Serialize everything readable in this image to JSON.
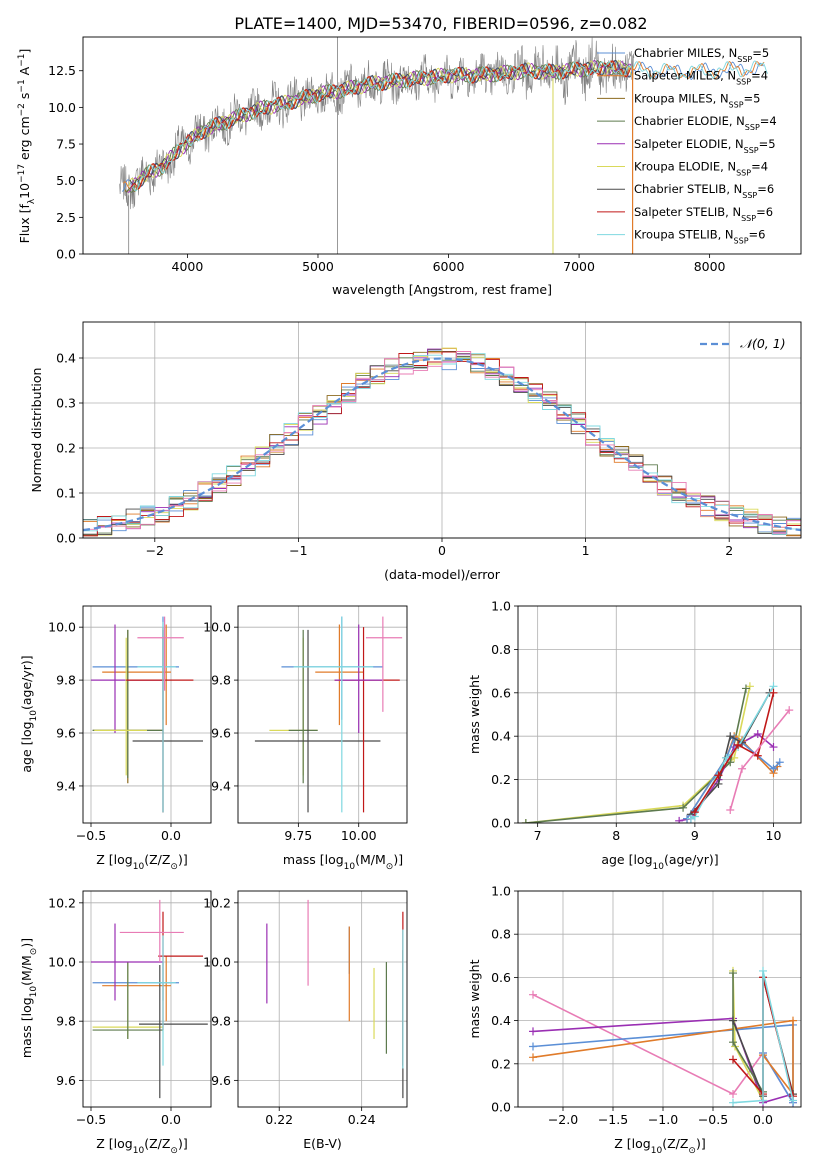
{
  "title": "PLATE=1400, MJD=53470, FIBERID=0596, z=0.082",
  "colors": {
    "chabrier_miles": "#5b8fd6",
    "salpeter_miles": "#e07b2a",
    "kroupa_miles": "#8c6a1e",
    "chabrier_elodie": "#5d7a4e",
    "salpeter_elodie": "#9a2fb3",
    "kroupa_elodie": "#d9d95a",
    "chabrier_stelib": "#4a4a4a",
    "salpeter_stelib": "#c01818",
    "kroupa_stelib": "#7fd8e0",
    "data": "#808080",
    "pink": "#e87cb5",
    "grid": "#b0b0b0"
  },
  "chart_data": [
    {
      "id": "spectrum",
      "type": "line",
      "xlabel": "wavelength [Angstrom, rest frame]",
      "ylabel": "Flux [f",
      "ylabel_sub": "λ",
      "ylabel_rest": "10",
      "ylabel_exp": "−17",
      "ylabel_units": " erg cm",
      "ylabel_exp2": "−2",
      "ylabel_units2": " s",
      "ylabel_exp3": "−1",
      "ylabel_units3": " A",
      "ylabel_exp4": "−1",
      "ylabel_end": "]",
      "xlim": [
        3200,
        8700
      ],
      "ylim": [
        0,
        14.8
      ],
      "xticks": [
        "4000",
        "5000",
        "6000",
        "7000",
        "8000"
      ],
      "yticks": [
        "0.0",
        "2.5",
        "5.0",
        "7.5",
        "10.0",
        "12.5"
      ],
      "legend": [
        {
          "name": "Chabrier MILES, N",
          "sub": "SSP",
          "n": "=5"
        },
        {
          "name": "Salpeter MILES, N",
          "sub": "SSP",
          "n": "=4"
        },
        {
          "name": "Kroupa MILES, N",
          "sub": "SSP",
          "n": "=5"
        },
        {
          "name": "Chabrier ELODIE, N",
          "sub": "SSP",
          "n": "=4"
        },
        {
          "name": "Salpeter ELODIE, N",
          "sub": "SSP",
          "n": "=5"
        },
        {
          "name": "Kroupa ELODIE, N",
          "sub": "SSP",
          "n": "=4"
        },
        {
          "name": "Chabrier STELIB, N",
          "sub": "SSP",
          "n": "=6"
        },
        {
          "name": "Salpeter STELIB, N",
          "sub": "SSP",
          "n": "=6"
        },
        {
          "name": "Kroupa STELIB, N",
          "sub": "SSP",
          "n": "=6"
        }
      ],
      "continuum": {
        "x": [
          3500,
          3600,
          3700,
          3800,
          3900,
          4000,
          4100,
          4200,
          4400,
          4600,
          4800,
          5000,
          5200,
          5400,
          5600,
          5800,
          6000,
          6200,
          6400,
          6600,
          6800,
          7000,
          7200,
          7400,
          7600,
          7800,
          8000,
          8200,
          8400
        ],
        "y": [
          4.3,
          4.8,
          5.5,
          5.9,
          6.8,
          7.6,
          8.3,
          8.7,
          9.4,
          10.0,
          10.4,
          10.9,
          11.2,
          11.6,
          11.8,
          12.0,
          12.2,
          12.2,
          12.3,
          12.5,
          12.4,
          12.6,
          12.7,
          12.6,
          12.5,
          12.4,
          12.5,
          12.6,
          12.7
        ]
      }
    },
    {
      "id": "residuals",
      "type": "bar",
      "xlabel": "(data-model)/error",
      "ylabel": "Normed distribution",
      "xlim": [
        -2.5,
        2.5
      ],
      "ylim": [
        0,
        0.48
      ],
      "xticks": [
        "−2",
        "−1",
        "0",
        "1",
        "2"
      ],
      "yticks": [
        "0.0",
        "0.1",
        "0.2",
        "0.3",
        "0.4"
      ],
      "legend_label": "𝒩(0, 1)",
      "bin_width": 0.1
    },
    {
      "id": "age-vs-z",
      "type": "scatter",
      "xlabel": "Z [log",
      "xlabel_sub": "10",
      "xlabel_rest": "(Z/Z",
      "xlabel_sub2": "⊙",
      "xlabel_end": ")]",
      "ylabel": "age  [log",
      "ylabel_sub": "10",
      "ylabel_end": "(age/yr)]",
      "xlim": [
        -0.55,
        0.25
      ],
      "ylim": [
        9.26,
        10.08
      ],
      "xticks": [
        "−0.5",
        "0.0"
      ],
      "yticks": [
        "9.4",
        "9.6",
        "9.8",
        "10.0"
      ],
      "points": [
        {
          "model": "chabrier_miles",
          "x": -0.05,
          "y": 9.85,
          "xerr": [
            0.44,
            0.1
          ],
          "yerr": [
            0.2,
            0.19
          ]
        },
        {
          "model": "salpeter_miles",
          "x": -0.03,
          "y": 9.83,
          "xerr": [
            0.4,
            0.03
          ],
          "yerr": [
            0.2,
            0.18
          ]
        },
        {
          "model": "kroupa_miles",
          "x": -0.27,
          "y": 9.61,
          "xerr": [
            0.22,
            0.22
          ],
          "yerr": [
            0.2,
            0.38
          ]
        },
        {
          "model": "chabrier_elodie",
          "x": -0.27,
          "y": 9.61,
          "xerr": [
            0.22,
            0.22
          ],
          "yerr": [
            0.18,
            0.38
          ]
        },
        {
          "model": "salpeter_elodie",
          "x": -0.35,
          "y": 9.8,
          "xerr": [
            0.15,
            0.3
          ],
          "yerr": [
            0.2,
            0.21
          ]
        },
        {
          "model": "kroupa_elodie",
          "x": -0.28,
          "y": 9.61,
          "xerr": [
            0.2,
            0.13
          ],
          "yerr": [
            0.17,
            0.35
          ]
        },
        {
          "model": "chabrier_stelib",
          "x": -0.05,
          "y": 9.57,
          "xerr": [
            0.19,
            0.25
          ],
          "yerr": [
            0.27,
            0.42
          ]
        },
        {
          "model": "salpeter_stelib",
          "x": -0.05,
          "y": 9.8,
          "xerr": [
            0.23,
            0.19
          ],
          "yerr": [
            0.5,
            0.2
          ]
        },
        {
          "model": "kroupa_stelib",
          "x": -0.05,
          "y": 9.85,
          "xerr": [
            0.16,
            0.08
          ],
          "yerr": [
            0.55,
            0.17
          ]
        },
        {
          "model": "pink",
          "x": -0.04,
          "y": 9.96,
          "xerr": [
            0.17,
            0.12
          ],
          "yerr": [
            0.2,
            0.08
          ]
        }
      ]
    },
    {
      "id": "age-vs-mass",
      "type": "scatter",
      "xlabel": "mass [log",
      "xlabel_sub": "10",
      "xlabel_rest": "(M/M",
      "xlabel_sub2": "⊙",
      "xlabel_end": ")]",
      "xlim": [
        9.5,
        10.2
      ],
      "ylim": [
        9.26,
        10.08
      ],
      "xticks": [
        "9.75",
        "10.00"
      ],
      "yticks": [
        "9.4",
        "9.6",
        "9.8",
        "10.0"
      ],
      "points": [
        {
          "model": "chabrier_miles",
          "x": 9.93,
          "y": 9.85,
          "xerr": [
            0.25,
            0.17
          ],
          "yerr": [
            0.2,
            0.19
          ]
        },
        {
          "model": "salpeter_miles",
          "x": 9.92,
          "y": 9.83,
          "xerr": [
            0.1,
            0.1
          ],
          "yerr": [
            0.2,
            0.18
          ]
        },
        {
          "model": "kroupa_elodie",
          "x": 9.77,
          "y": 9.61,
          "xerr": [
            0.14,
            0.06
          ],
          "yerr": [
            0.17,
            0.35
          ]
        },
        {
          "model": "chabrier_elodie",
          "x": 9.77,
          "y": 9.61,
          "xerr": [
            0.06,
            0.06
          ],
          "yerr": [
            0.2,
            0.38
          ]
        },
        {
          "model": "chabrier_stelib",
          "x": 9.79,
          "y": 9.57,
          "xerr": [
            0.22,
            0.3
          ],
          "yerr": [
            0.27,
            0.42
          ]
        },
        {
          "model": "salpeter_stelib",
          "x": 10.02,
          "y": 9.8,
          "xerr": [
            0.12,
            0.15
          ],
          "yerr": [
            0.5,
            0.2
          ]
        },
        {
          "model": "salpeter_elodie",
          "x": 10.0,
          "y": 9.8,
          "xerr": [
            0.1,
            0.1
          ],
          "yerr": [
            0.2,
            0.21
          ]
        },
        {
          "model": "kroupa_stelib",
          "x": 9.93,
          "y": 9.85,
          "xerr": [
            0.2,
            0.13
          ],
          "yerr": [
            0.55,
            0.19
          ]
        },
        {
          "model": "pink",
          "x": 10.1,
          "y": 9.96,
          "xerr": [
            0.07,
            0.08
          ],
          "yerr": [
            0.28,
            0.08
          ]
        }
      ]
    },
    {
      "id": "weight-vs-age",
      "type": "line",
      "xlabel": "age  [log",
      "xlabel_sub": "10",
      "xlabel_end": "(age/yr)]",
      "ylabel": "mass weight",
      "xlim": [
        6.75,
        10.35
      ],
      "ylim": [
        0,
        1.0
      ],
      "xticks": [
        "7",
        "8",
        "9",
        "10"
      ],
      "yticks": [
        "0.0",
        "0.2",
        "0.4",
        "0.6",
        "0.8",
        "1.0"
      ],
      "series": [
        {
          "model": "kroupa_elodie",
          "x": [
            6.85,
            8.85,
            9.5,
            9.7
          ],
          "y": [
            0.0,
            0.08,
            0.3,
            0.63
          ]
        },
        {
          "model": "chabrier_elodie",
          "x": [
            6.85,
            8.85,
            9.45,
            9.65
          ],
          "y": [
            0.0,
            0.07,
            0.28,
            0.62
          ]
        },
        {
          "model": "salpeter_elodie",
          "x": [
            8.8,
            8.95,
            9.3,
            9.5,
            9.8,
            10.0
          ],
          "y": [
            0.01,
            0.02,
            0.2,
            0.35,
            0.41,
            0.35
          ]
        },
        {
          "model": "salpeter_miles",
          "x": [
            8.9,
            9.4,
            9.5,
            9.6,
            10.0,
            10.05
          ],
          "y": [
            0.02,
            0.3,
            0.4,
            0.38,
            0.23,
            0.26
          ]
        },
        {
          "model": "chabrier_miles",
          "x": [
            8.9,
            9.4,
            9.5,
            9.6,
            10.0,
            10.08
          ],
          "y": [
            0.02,
            0.3,
            0.39,
            0.37,
            0.25,
            0.28
          ]
        },
        {
          "model": "chabrier_stelib",
          "x": [
            8.95,
            9.3,
            9.45,
            9.6,
            9.95
          ],
          "y": [
            0.04,
            0.18,
            0.4,
            0.37,
            0.6
          ]
        },
        {
          "model": "kroupa_stelib",
          "x": [
            8.95,
            9.0,
            9.4,
            9.55,
            10.0
          ],
          "y": [
            0.02,
            0.03,
            0.3,
            0.35,
            0.63
          ]
        },
        {
          "model": "salpeter_stelib",
          "x": [
            9.0,
            9.3,
            9.55,
            9.8,
            10.0
          ],
          "y": [
            0.05,
            0.22,
            0.36,
            0.31,
            0.6
          ]
        },
        {
          "model": "pink",
          "x": [
            9.45,
            9.6,
            10.2
          ],
          "y": [
            0.06,
            0.25,
            0.52
          ]
        }
      ]
    },
    {
      "id": "mass-vs-z",
      "type": "scatter",
      "xlabel": "Z [log",
      "xlabel_sub": "10",
      "xlabel_rest": "(Z/Z",
      "xlabel_sub2": "⊙",
      "xlabel_end": ")]",
      "ylabel": "mass [log",
      "ylabel_sub": "10",
      "ylabel_rest": "(M/M",
      "ylabel_sub2": "⊙",
      "ylabel_end": ")]",
      "xlim": [
        -0.55,
        0.25
      ],
      "ylim": [
        9.51,
        10.24
      ],
      "xticks": [
        "−0.5",
        "0.0"
      ],
      "yticks": [
        "9.6",
        "9.8",
        "10.0",
        "10.2"
      ],
      "points": [
        {
          "model": "chabrier_miles",
          "x": -0.05,
          "y": 9.93,
          "xerr": [
            0.44,
            0.1
          ],
          "yerr": [
            0.06,
            0.07
          ]
        },
        {
          "model": "salpeter_miles",
          "x": -0.03,
          "y": 9.92,
          "xerr": [
            0.4,
            0.03
          ],
          "yerr": [
            0.12,
            0.1
          ]
        },
        {
          "model": "kroupa_elodie",
          "x": -0.27,
          "y": 9.78,
          "xerr": [
            0.22,
            0.22
          ],
          "yerr": [
            0.04,
            0.22
          ]
        },
        {
          "model": "chabrier_elodie",
          "x": -0.27,
          "y": 9.77,
          "xerr": [
            0.22,
            0.22
          ],
          "yerr": [
            0.03,
            0.23
          ]
        },
        {
          "model": "salpeter_elodie",
          "x": -0.35,
          "y": 10.0,
          "xerr": [
            0.15,
            0.3
          ],
          "yerr": [
            0.13,
            0.13
          ]
        },
        {
          "model": "chabrier_stelib",
          "x": -0.07,
          "y": 9.79,
          "xerr": [
            0.13,
            0.3
          ],
          "yerr": [
            0.25,
            0.2
          ]
        },
        {
          "model": "salpeter_stelib",
          "x": -0.05,
          "y": 10.02,
          "xerr": [
            0.03,
            0.25
          ],
          "yerr": [
            0.25,
            0.15
          ]
        },
        {
          "model": "kroupa_stelib",
          "x": -0.05,
          "y": 9.93,
          "xerr": [
            0.16,
            0.08
          ],
          "yerr": [
            0.28,
            0.16
          ]
        },
        {
          "model": "pink",
          "x": -0.07,
          "y": 10.1,
          "xerr": [
            0.25,
            0.15
          ],
          "yerr": [
            0.1,
            0.11
          ]
        }
      ]
    },
    {
      "id": "mass-vs-ebv",
      "type": "scatter",
      "xlabel": "E(B-V)",
      "xlim": [
        0.21,
        0.251
      ],
      "ylim": [
        9.51,
        10.24
      ],
      "xticks": [
        "0.22",
        "0.24"
      ],
      "yticks": [
        "9.6",
        "9.8",
        "10.0",
        "10.2"
      ],
      "points": [
        {
          "model": "salpeter_elodie",
          "x": 0.217,
          "y": 10.0,
          "yerr": [
            0.14,
            0.13
          ]
        },
        {
          "model": "pink",
          "x": 0.227,
          "y": 10.07,
          "yerr": [
            0.15,
            0.14
          ]
        },
        {
          "model": "chabrier_miles",
          "x": 0.237,
          "y": 10.02,
          "yerr": [
            0.06,
            0.1
          ]
        },
        {
          "model": "salpeter_miles",
          "x": 0.237,
          "y": 9.92,
          "yerr": [
            0.12,
            0.2
          ]
        },
        {
          "model": "kroupa_elodie",
          "x": 0.243,
          "y": 9.85,
          "yerr": [
            0.11,
            0.13
          ]
        },
        {
          "model": "chabrier_elodie",
          "x": 0.246,
          "y": 9.85,
          "yerr": [
            0.16,
            0.15
          ]
        },
        {
          "model": "chabrier_stelib",
          "x": 0.25,
          "y": 9.79,
          "yerr": [
            0.25,
            0.25
          ]
        },
        {
          "model": "salpeter_stelib",
          "x": 0.25,
          "y": 9.9,
          "yerr": [
            0.25,
            0.27
          ]
        },
        {
          "model": "kroupa_stelib",
          "x": 0.25,
          "y": 9.92,
          "yerr": [
            0.28,
            0.19
          ]
        }
      ]
    },
    {
      "id": "weight-vs-z",
      "type": "line",
      "xlabel": "Z [log",
      "xlabel_sub": "10",
      "xlabel_rest": "(Z/Z",
      "xlabel_sub2": "⊙",
      "xlabel_end": ")]",
      "ylabel": "mass weight",
      "xlim": [
        -2.45,
        0.38
      ],
      "ylim": [
        0,
        1.0
      ],
      "xticks": [
        "−2.0",
        "−1.5",
        "−1.0",
        "−0.5",
        "0.0"
      ],
      "yticks": [
        "0.0",
        "0.2",
        "0.4",
        "0.6",
        "0.8",
        "1.0"
      ],
      "series": [
        {
          "model": "pink",
          "x": [
            -2.3,
            -0.3,
            0.0,
            0.3
          ],
          "y": [
            0.52,
            0.06,
            0.25,
            0.02
          ]
        },
        {
          "model": "salpeter_elodie",
          "x": [
            -2.3,
            -0.3,
            0.0,
            0.3
          ],
          "y": [
            0.35,
            0.41,
            0.02,
            0.06
          ]
        },
        {
          "model": "chabrier_miles",
          "x": [
            -2.3,
            0.3,
            0.3,
            0.0
          ],
          "y": [
            0.28,
            0.38,
            0.02,
            0.25
          ]
        },
        {
          "model": "salpeter_miles",
          "x": [
            -2.3,
            0.3,
            0.3,
            0.0
          ],
          "y": [
            0.23,
            0.4,
            0.06,
            0.24
          ]
        },
        {
          "model": "kroupa_elodie",
          "x": [
            -0.3,
            -0.28,
            0.0
          ],
          "y": [
            0.63,
            0.28,
            0.03
          ]
        },
        {
          "model": "chabrier_elodie",
          "x": [
            -0.3,
            -0.3,
            0.0
          ],
          "y": [
            0.62,
            0.3,
            0.07
          ]
        },
        {
          "model": "chabrier_stelib",
          "x": [
            -0.3,
            0.0,
            0.0,
            0.3
          ],
          "y": [
            0.4,
            0.05,
            0.6,
            0.06
          ]
        },
        {
          "model": "salpeter_stelib",
          "x": [
            -0.3,
            0.0,
            0.0,
            0.3
          ],
          "y": [
            0.22,
            0.06,
            0.6,
            0.05
          ]
        },
        {
          "model": "kroupa_stelib",
          "x": [
            -0.3,
            0.0,
            0.0,
            0.3
          ],
          "y": [
            0.02,
            0.03,
            0.63,
            0.03
          ]
        }
      ]
    }
  ]
}
